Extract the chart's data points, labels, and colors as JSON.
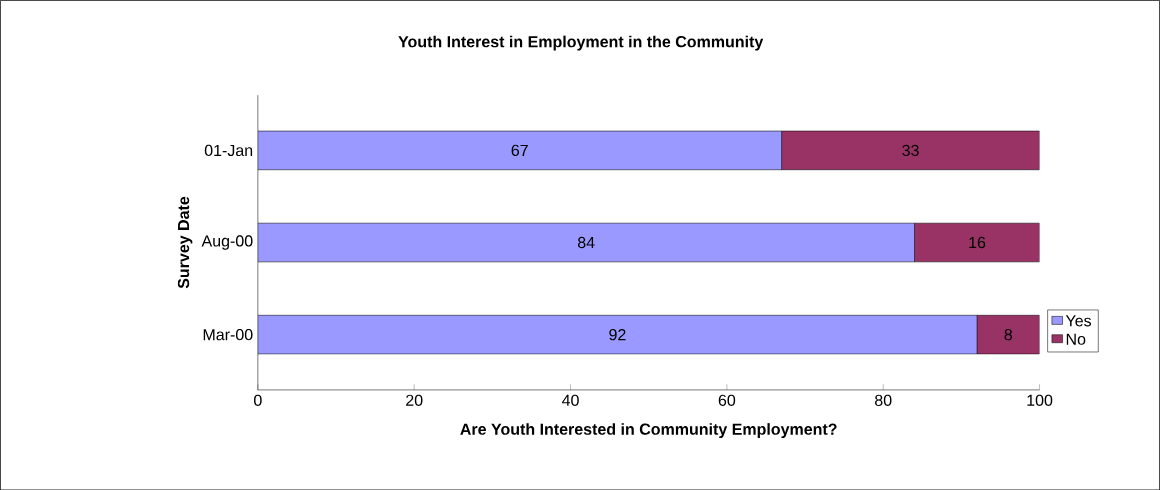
{
  "chart_data": {
    "type": "bar",
    "orientation": "horizontal",
    "stacked": true,
    "title": "Youth Interest in Employment in the Community",
    "xlabel": "Are Youth Interested in Community Employment?",
    "ylabel": "Survey Date",
    "categories": [
      "01-Jan",
      "Aug-00",
      "Mar-00"
    ],
    "series": [
      {
        "name": "Yes",
        "color": "#9999ff",
        "values": [
          67,
          84,
          92
        ]
      },
      {
        "name": "No",
        "color": "#993366",
        "values": [
          33,
          16,
          8
        ]
      }
    ],
    "xlim": [
      0,
      100
    ],
    "xticks": [
      0,
      20,
      40,
      60,
      80,
      100
    ],
    "data_labels": true,
    "legend": "right",
    "grid": false
  }
}
